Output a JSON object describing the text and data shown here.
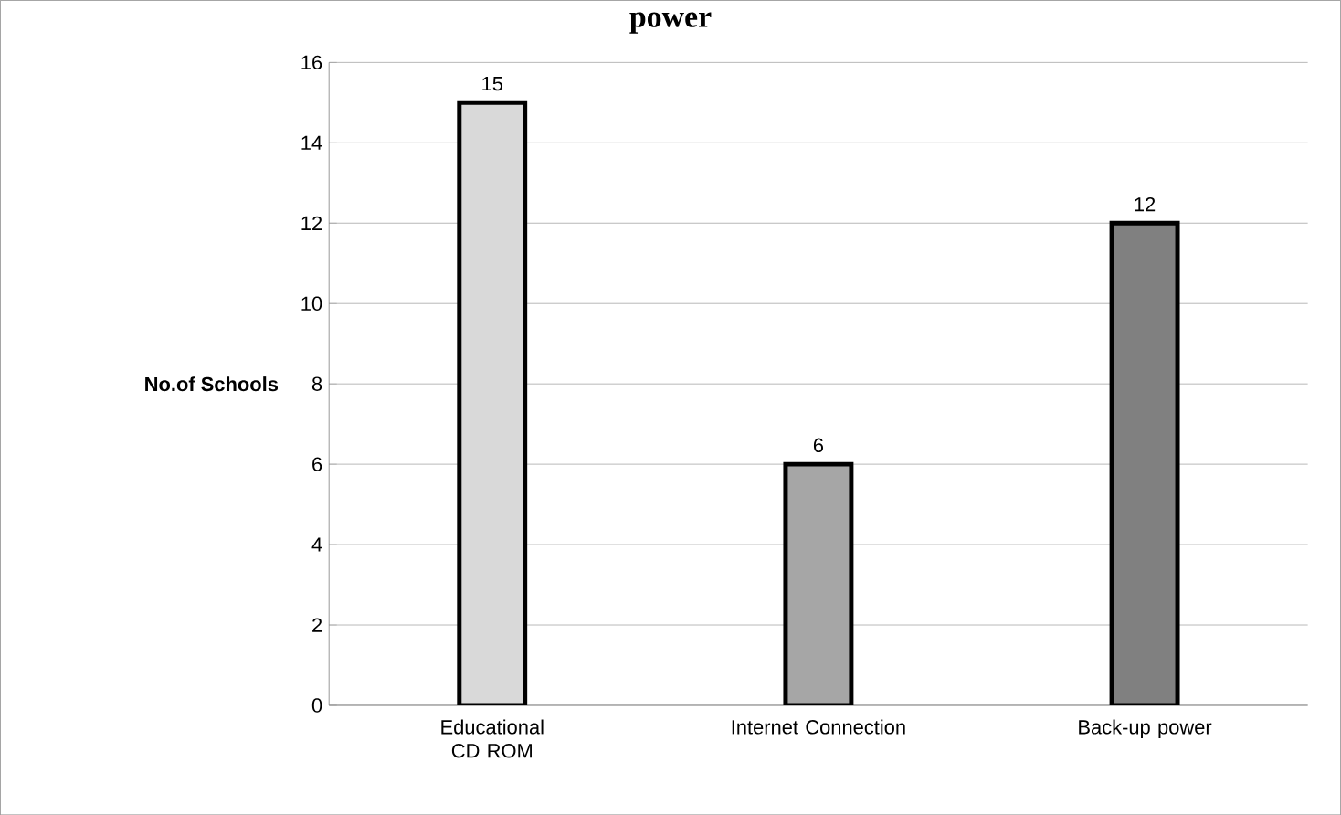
{
  "chart_data": {
    "type": "bar",
    "title": "power",
    "ylabel": "No.of Schools",
    "categories": [
      "Educational CD ROM",
      "Internet Connection",
      "Back-up power"
    ],
    "values": [
      15,
      6,
      12
    ],
    "colors": [
      "#d9d9d9",
      "#a6a6a6",
      "#808080"
    ],
    "ylim": [
      0,
      16
    ],
    "yticks": [
      0,
      2,
      4,
      6,
      8,
      10,
      12,
      14,
      16
    ],
    "grid": "y",
    "data_labels": true
  }
}
